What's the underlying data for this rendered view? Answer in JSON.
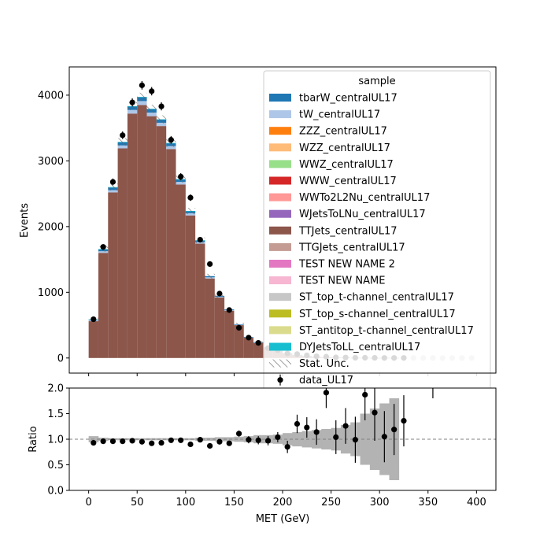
{
  "chart_data": {
    "type": "bar",
    "subtype": "stacked-step-histogram-with-data-points-and-ratio-panel",
    "xlabel": "MET (GeV)",
    "ylabel_main": "Events",
    "ylabel_ratio": "Ratio",
    "xlim": [
      -20,
      420
    ],
    "ylim_main": [
      -230,
      4430
    ],
    "ylim_ratio": [
      0,
      2
    ],
    "x_ticks": [
      "0",
      "50",
      "100",
      "150",
      "200",
      "250",
      "300",
      "350",
      "400"
    ],
    "x_tick_values": [
      0,
      50,
      100,
      150,
      200,
      250,
      300,
      350,
      400
    ],
    "y_ticks_main": [
      "0",
      "1000",
      "2000",
      "3000",
      "4000"
    ],
    "y_tick_values_main": [
      0,
      1000,
      2000,
      3000,
      4000
    ],
    "y_ticks_ratio": [
      "0.0",
      "0.5",
      "1.0",
      "1.5",
      "2.0"
    ],
    "y_tick_values_ratio": [
      0,
      0.5,
      1.0,
      1.5,
      2.0
    ],
    "legend": {
      "title": "sample",
      "placement": "upper-right",
      "entries": [
        {
          "name": "tbarW_centralUL17",
          "color": "#1f77b4",
          "kind": "patch"
        },
        {
          "name": "tW_centralUL17",
          "color": "#aec7e8",
          "kind": "patch"
        },
        {
          "name": "ZZZ_centralUL17",
          "color": "#ff7f0e",
          "kind": "patch"
        },
        {
          "name": "WZZ_centralUL17",
          "color": "#ffbb78",
          "kind": "patch"
        },
        {
          "name": "WWZ_centralUL17",
          "color": "#98df8a",
          "kind": "patch"
        },
        {
          "name": "WWW_centralUL17",
          "color": "#d62728",
          "kind": "patch"
        },
        {
          "name": "WWTo2L2Nu_centralUL17",
          "color": "#ff9896",
          "kind": "patch"
        },
        {
          "name": "WJetsToLNu_centralUL17",
          "color": "#9467bd",
          "kind": "patch"
        },
        {
          "name": "TTJets_centralUL17",
          "color": "#8c564b",
          "kind": "patch"
        },
        {
          "name": "TTGJets_centralUL17",
          "color": "#c49c94",
          "kind": "patch"
        },
        {
          "name": "TEST NEW NAME 2",
          "color": "#e377c2",
          "kind": "patch"
        },
        {
          "name": "TEST NEW NAME",
          "color": "#f7b6d2",
          "kind": "patch"
        },
        {
          "name": "ST_top_t-channel_centralUL17",
          "color": "#c7c7c7",
          "kind": "patch"
        },
        {
          "name": "ST_top_s-channel_centralUL17",
          "color": "#bcbd22",
          "kind": "patch"
        },
        {
          "name": "ST_antitop_t-channel_centralUL17",
          "color": "#dbdb8d",
          "kind": "patch"
        },
        {
          "name": "DYJetsToLL_centralUL17",
          "color": "#17becf",
          "kind": "patch"
        },
        {
          "name": "Stat. Unc.",
          "color": "#555555",
          "kind": "hatch"
        },
        {
          "name": "data_UL17",
          "color": "#000000",
          "kind": "marker"
        }
      ]
    },
    "bin_edges": [
      0,
      10,
      20,
      30,
      40,
      50,
      60,
      70,
      80,
      90,
      100,
      110,
      120,
      130,
      140,
      150,
      160,
      170,
      180,
      190,
      200,
      210,
      220,
      230,
      240,
      250,
      260,
      270,
      280,
      290,
      300,
      310,
      320,
      330,
      340,
      350,
      360,
      370,
      380,
      390,
      400
    ],
    "series": [
      {
        "name": "TTJets_centralUL17",
        "color": "#8c564b",
        "values": [
          560,
          1600,
          2520,
          3190,
          3720,
          3850,
          3680,
          3530,
          3180,
          2640,
          2170,
          1740,
          1210,
          920,
          720,
          500,
          310,
          230,
          160,
          110,
          70,
          45,
          28,
          18,
          12,
          8,
          5,
          3,
          2,
          1,
          1,
          1,
          0,
          0,
          0,
          0,
          0,
          0,
          0,
          0
        ]
      },
      {
        "name": "tW_centralUL17",
        "color": "#aec7e8",
        "values": [
          15,
          25,
          35,
          45,
          55,
          60,
          55,
          50,
          45,
          40,
          33,
          25,
          18,
          13,
          10,
          7,
          5,
          4,
          3,
          2,
          1,
          1,
          1,
          0,
          0,
          0,
          0,
          0,
          0,
          0,
          0,
          0,
          0,
          0,
          0,
          0,
          0,
          0,
          0,
          0
        ]
      },
      {
        "name": "tbarW_centralUL17",
        "color": "#1f77b4",
        "values": [
          10,
          25,
          40,
          50,
          55,
          60,
          55,
          50,
          45,
          40,
          33,
          25,
          18,
          13,
          10,
          7,
          5,
          4,
          3,
          2,
          1,
          1,
          1,
          0,
          0,
          0,
          0,
          0,
          0,
          0,
          0,
          0,
          0,
          0,
          0,
          0,
          0,
          0,
          0,
          0
        ]
      },
      {
        "name": "DYJetsToLL_centralUL17",
        "color": "#17becf",
        "values": [
          3,
          8,
          6,
          4,
          3,
          3,
          2,
          2,
          1,
          1,
          1,
          1,
          0,
          0,
          0,
          0,
          0,
          0,
          0,
          0,
          0,
          0,
          0,
          0,
          0,
          0,
          0,
          0,
          0,
          0,
          0,
          0,
          0,
          0,
          0,
          0,
          0,
          0,
          0,
          0
        ]
      }
    ],
    "data_points": {
      "name": "data_UL17",
      "x": [
        5,
        15,
        25,
        35,
        45,
        55,
        65,
        75,
        85,
        95,
        105,
        115,
        125,
        135,
        145,
        155,
        165,
        175,
        185,
        195,
        205,
        215,
        225,
        235,
        245,
        255,
        265,
        275,
        285,
        295,
        305,
        315,
        325,
        335,
        345,
        355,
        365,
        375,
        385,
        395
      ],
      "y": [
        590,
        1690,
        2680,
        3390,
        3890,
        4150,
        4060,
        3830,
        3320,
        2760,
        2440,
        1800,
        1430,
        980,
        730,
        460,
        310,
        230,
        150,
        120,
        70,
        60,
        40,
        25,
        20,
        10,
        7,
        4,
        4,
        3,
        1,
        1,
        1,
        0,
        0,
        0,
        0,
        0,
        0,
        0
      ]
    },
    "ratio_points": {
      "x": [
        5,
        15,
        25,
        35,
        45,
        55,
        65,
        75,
        85,
        95,
        105,
        115,
        125,
        135,
        145,
        155,
        165,
        175,
        185,
        195,
        205,
        215,
        225,
        235,
        245,
        255,
        265,
        275,
        285,
        295,
        305,
        315,
        325
      ],
      "y": [
        0.93,
        0.96,
        0.96,
        0.96,
        0.97,
        0.95,
        0.92,
        0.93,
        0.98,
        0.98,
        0.9,
        0.99,
        0.87,
        0.95,
        0.92,
        1.11,
        0.99,
        0.98,
        0.97,
        1.04,
        0.85,
        1.3,
        1.23,
        1.14,
        1.91,
        1.04,
        1.26,
        0.99,
        1.87,
        1.52,
        1.05,
        1.19,
        1.36
      ],
      "err": [
        0.04,
        0.03,
        0.02,
        0.02,
        0.02,
        0.02,
        0.02,
        0.02,
        0.02,
        0.02,
        0.02,
        0.03,
        0.03,
        0.04,
        0.05,
        0.06,
        0.07,
        0.08,
        0.09,
        0.1,
        0.12,
        0.18,
        0.2,
        0.25,
        0.3,
        0.33,
        0.35,
        0.45,
        0.5,
        0.55,
        0.5,
        0.5,
        0.5
      ]
    },
    "ratio_band_halfwidth": [
      0.06,
      0.03,
      0.02,
      0.02,
      0.02,
      0.02,
      0.02,
      0.02,
      0.02,
      0.02,
      0.02,
      0.03,
      0.03,
      0.04,
      0.04,
      0.05,
      0.06,
      0.08,
      0.08,
      0.09,
      0.12,
      0.14,
      0.16,
      0.18,
      0.2,
      0.22,
      0.28,
      0.33,
      0.5,
      0.6,
      0.7,
      0.8,
      0.0,
      0.0,
      0.0,
      0.0,
      0.0,
      0.0,
      0.0,
      0.0
    ],
    "ratio_reference_line": 1.0
  }
}
